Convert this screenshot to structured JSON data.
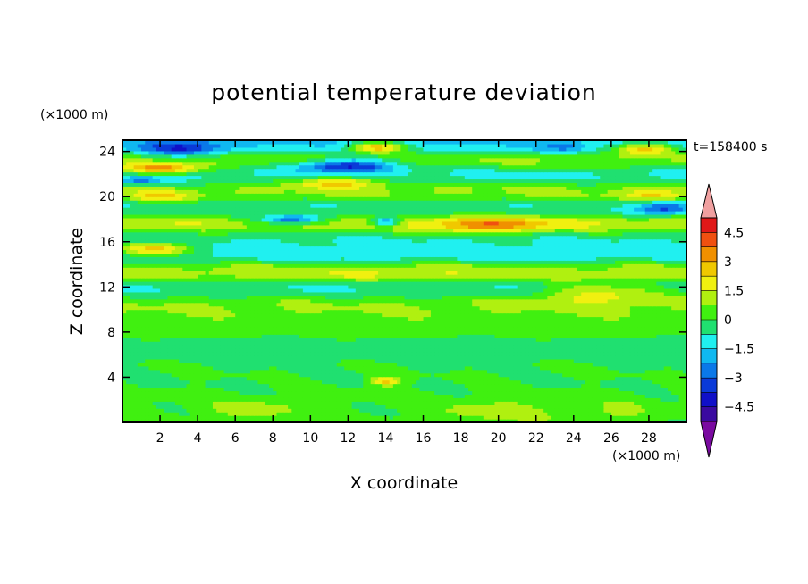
{
  "chart_data": {
    "type": "heatmap",
    "title": "potential temperature deviation",
    "xlabel": "X coordinate",
    "ylabel": "Z coordinate",
    "x_unit": "(×1000 m)",
    "y_unit": "(×1000 m)",
    "time_label": "t=158400 s",
    "xlim": [
      0,
      30
    ],
    "ylim": [
      0,
      25
    ],
    "x_ticks": [
      2,
      4,
      6,
      8,
      10,
      12,
      14,
      16,
      18,
      20,
      22,
      24,
      26,
      28
    ],
    "x_tick_labels": [
      "2",
      "4",
      "6",
      "8",
      "10",
      "12",
      "14",
      "16",
      "18",
      "20",
      "22",
      "24",
      "26",
      "28"
    ],
    "y_ticks": [
      4,
      8,
      12,
      16,
      20,
      24
    ],
    "y_tick_labels": [
      "4",
      "8",
      "12",
      "16",
      "20",
      "24"
    ],
    "colorbar": {
      "levels": [
        -5.25,
        -4.5,
        -3.75,
        -3,
        -2.25,
        -1.5,
        -0.75,
        0,
        0.75,
        1.5,
        2.25,
        3,
        3.75,
        4.5,
        5.25
      ],
      "tick_values": [
        -4.5,
        -3,
        -1.5,
        0,
        1.5,
        3,
        4.5
      ],
      "tick_labels": [
        "−4.5",
        "−3",
        "−1.5",
        "0",
        "1.5",
        "3",
        "4.5"
      ],
      "colors": [
        "#7a0aa0",
        "#3a0aa0",
        "#1010c8",
        "#0a3ad8",
        "#0a78e8",
        "#10b8f0",
        "#20f0f0",
        "#20e070",
        "#40f010",
        "#b0f010",
        "#f0f010",
        "#f0c800",
        "#f09000",
        "#f05010",
        "#e01818",
        "#f0a0a0"
      ],
      "extend": "both"
    },
    "field": {
      "background_level": 0,
      "layers": [
        {
          "z": 1.5,
          "value": 0.2
        },
        {
          "z": 4.5,
          "value": 0
        },
        {
          "z": 6.5,
          "value": -0.4
        },
        {
          "z": 8.5,
          "value": 0.4
        },
        {
          "z": 10.5,
          "value": 0.8
        },
        {
          "z": 11.8,
          "value": -0.8
        },
        {
          "z": 13.5,
          "value": 1.2
        },
        {
          "z": 14.8,
          "value": -1.2
        },
        {
          "z": 16.5,
          "value": -0.9
        },
        {
          "z": 17.5,
          "value": 1.6
        },
        {
          "z": 19,
          "value": -0.6
        },
        {
          "z": 20.5,
          "value": 0.9
        },
        {
          "z": 22,
          "value": -1.0
        },
        {
          "z": 23.3,
          "value": 1.0
        },
        {
          "z": 24.5,
          "value": -1.6
        }
      ],
      "features": [
        {
          "x": 3.2,
          "z": 24.3,
          "rx": 2.0,
          "rz": 0.7,
          "value": -4.0
        },
        {
          "x": 13.5,
          "z": 24.4,
          "rx": 1.5,
          "rz": 0.5,
          "value": 2.6
        },
        {
          "x": 23.5,
          "z": 24.4,
          "rx": 1.2,
          "rz": 0.5,
          "value": -2.5
        },
        {
          "x": 27.8,
          "z": 24.3,
          "rx": 1.6,
          "rz": 0.6,
          "value": 2.3
        },
        {
          "x": 2.0,
          "z": 22.5,
          "rx": 2.0,
          "rz": 0.5,
          "value": 3.3
        },
        {
          "x": 12.0,
          "z": 22.8,
          "rx": 2.6,
          "rz": 0.6,
          "value": -3.8
        },
        {
          "x": 1.0,
          "z": 21.4,
          "rx": 1.2,
          "rz": 0.4,
          "value": -2.6
        },
        {
          "x": 11.5,
          "z": 21.3,
          "rx": 2.5,
          "rz": 0.5,
          "value": 2.2
        },
        {
          "x": 2.0,
          "z": 20.0,
          "rx": 1.6,
          "rz": 0.5,
          "value": 2.3
        },
        {
          "x": 28.2,
          "z": 20.1,
          "rx": 1.8,
          "rz": 0.5,
          "value": 2.4
        },
        {
          "x": 28.8,
          "z": 19.0,
          "rx": 1.5,
          "rz": 0.6,
          "value": -3.5
        },
        {
          "x": 9.0,
          "z": 18.0,
          "rx": 1.7,
          "rz": 0.4,
          "value": -2.8
        },
        {
          "x": 14.0,
          "z": 17.8,
          "rx": 0.8,
          "rz": 0.4,
          "value": -2.4
        },
        {
          "x": 19.5,
          "z": 17.5,
          "rx": 3.2,
          "rz": 0.7,
          "value": 3.8
        },
        {
          "x": 1.8,
          "z": 15.4,
          "rx": 2.0,
          "rz": 0.6,
          "value": 2.4
        },
        {
          "x": 14.5,
          "z": 13.2,
          "rx": 4.0,
          "rz": 0.7,
          "value": 1.6
        },
        {
          "x": 25.5,
          "z": 11.5,
          "rx": 3.5,
          "rz": 0.9,
          "value": 1.6
        },
        {
          "x": 14.0,
          "z": 3.7,
          "rx": 0.8,
          "rz": 0.4,
          "value": 2.6
        },
        {
          "x": 20.0,
          "z": 1.0,
          "rx": 3.0,
          "rz": 1.0,
          "value": 1.2
        },
        {
          "x": 7.0,
          "z": 1.2,
          "rx": 2.5,
          "rz": 0.8,
          "value": 1.2
        },
        {
          "x": 26.5,
          "z": 1.0,
          "rx": 1.5,
          "rz": 0.8,
          "value": 1.0
        }
      ]
    }
  }
}
